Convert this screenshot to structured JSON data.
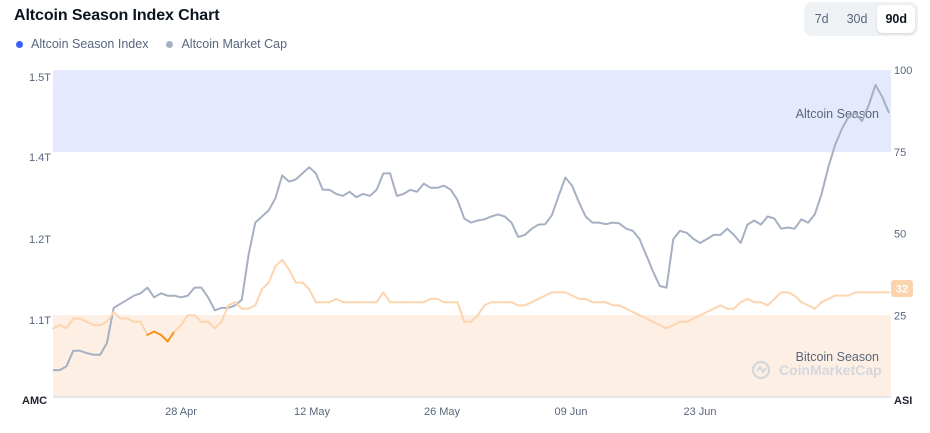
{
  "title": "Altcoin Season Index Chart",
  "legend": [
    {
      "label": "Altcoin Season Index",
      "color": "#3861fb"
    },
    {
      "label": "Altcoin Market Cap",
      "color": "#a6b0c3"
    }
  ],
  "timeframes": [
    "7d",
    "30d",
    "90d"
  ],
  "selected_timeframe": "90d",
  "zones": {
    "altcoin": "Altcoin Season",
    "bitcoin": "Bitcoin Season"
  },
  "watermark": "CoinMarketCap",
  "colors": {
    "market_cap": "#a6b0c3",
    "index": "#f7931a",
    "index_faded": "#fcd5b0",
    "altcoin_zone": "#e5e9fd",
    "bitcoin_zone": "#fdefe3",
    "badge": "#fbd4ae"
  },
  "chart_data": {
    "type": "line",
    "x_ticks": [
      "28 Apr",
      "12 May",
      "26 May",
      "09 Jun",
      "23 Jun"
    ],
    "left_axis": {
      "label": "AMC",
      "ticks": [
        "1.5T",
        "1.4T",
        "1.2T",
        "1.1T"
      ]
    },
    "right_axis": {
      "label": "ASI",
      "ticks": [
        "100",
        "75",
        "50",
        "25"
      ],
      "ylim": [
        0,
        100
      ]
    },
    "current_index_label": "32",
    "series": [
      {
        "name": "Altcoin Market Cap",
        "axis": "left",
        "values": [
          1.035,
          1.035,
          1.04,
          1.06,
          1.06,
          1.057,
          1.055,
          1.055,
          1.07,
          1.115,
          1.12,
          1.125,
          1.13,
          1.133,
          1.14,
          1.128,
          1.133,
          1.13,
          1.13,
          1.128,
          1.13,
          1.14,
          1.14,
          1.128,
          1.112,
          1.115,
          1.115,
          1.118,
          1.125,
          1.18,
          1.24,
          1.255,
          1.27,
          1.3,
          1.355,
          1.34,
          1.345,
          1.36,
          1.375,
          1.36,
          1.32,
          1.32,
          1.31,
          1.305,
          1.315,
          1.302,
          1.31,
          1.305,
          1.32,
          1.36,
          1.36,
          1.305,
          1.31,
          1.32,
          1.315,
          1.335,
          1.325,
          1.325,
          1.33,
          1.32,
          1.295,
          1.25,
          1.24,
          1.245,
          1.248,
          1.255,
          1.26,
          1.255,
          1.24,
          1.205,
          1.21,
          1.225,
          1.235,
          1.236,
          1.258,
          1.305,
          1.35,
          1.33,
          1.29,
          1.255,
          1.24,
          1.24,
          1.236,
          1.24,
          1.238,
          1.225,
          1.22,
          1.2,
          1.18,
          1.16,
          1.142,
          1.14,
          1.2,
          1.22,
          1.215,
          1.2,
          1.195,
          1.2,
          1.21,
          1.21,
          1.225,
          1.21,
          1.195,
          1.235,
          1.245,
          1.235,
          1.255,
          1.25,
          1.225,
          1.228,
          1.225,
          1.248,
          1.24,
          1.26,
          1.31,
          1.375,
          1.415,
          1.435,
          1.45,
          1.455,
          1.445,
          1.465,
          1.49,
          1.475,
          1.455
        ]
      },
      {
        "name": "Altcoin Season Index",
        "axis": "right",
        "values": [
          21,
          22,
          21,
          24,
          24,
          23,
          22,
          22,
          23,
          26,
          24,
          24,
          23,
          23,
          19,
          20,
          19,
          17,
          20,
          22,
          25,
          25,
          23,
          23,
          21,
          23,
          28,
          29,
          27,
          27,
          28,
          33,
          35,
          40,
          42,
          39,
          35,
          35,
          33,
          29,
          29,
          29,
          30,
          29,
          29,
          29,
          29,
          29,
          29,
          32,
          29,
          29,
          29,
          29,
          29,
          29,
          30,
          30,
          29,
          29,
          29,
          23,
          23,
          25,
          28,
          29,
          29,
          29,
          29,
          28,
          28,
          29,
          30,
          31,
          32,
          32,
          32,
          31,
          30,
          30,
          29,
          29,
          29,
          28,
          28,
          27,
          26,
          25,
          24,
          23,
          22,
          21,
          22,
          23,
          23,
          24,
          25,
          26,
          27,
          28,
          27,
          27,
          29,
          30,
          29,
          29,
          28,
          30,
          32,
          32,
          31,
          29,
          28,
          27,
          29,
          30,
          31,
          31,
          31,
          32,
          32,
          32,
          32,
          32,
          32
        ]
      }
    ]
  }
}
